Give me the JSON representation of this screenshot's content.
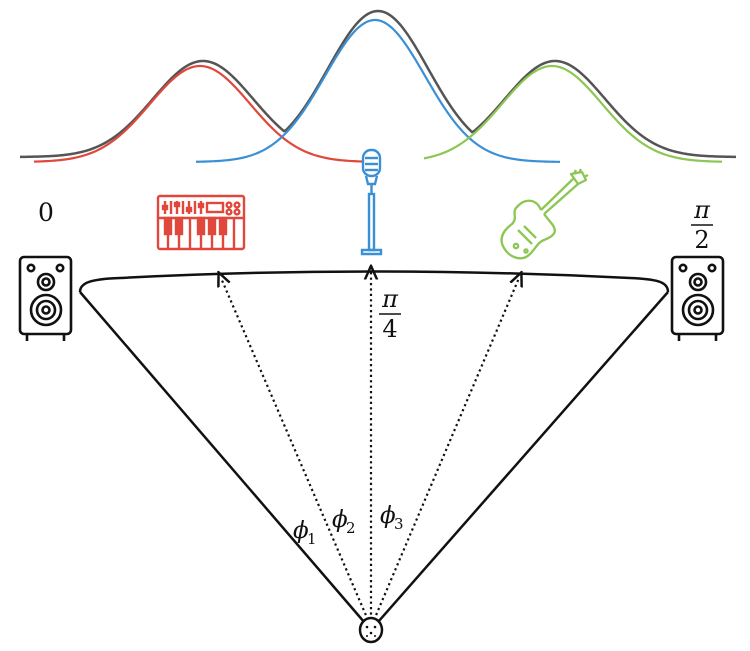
{
  "labels": {
    "left_angle": "0",
    "center_num": "π",
    "center_den": "4",
    "right_num": "π",
    "right_den": "2",
    "phi_symbol": "ϕ",
    "phi1_sub": "1",
    "phi2_sub": "2",
    "phi3_sub": "3"
  },
  "instruments": [
    {
      "name": "keyboard",
      "color": "#e0483c"
    },
    {
      "name": "microphone",
      "color": "#3b8fd4"
    },
    {
      "name": "guitar",
      "color": "#8cc653"
    }
  ],
  "colors": {
    "mixture": "#555555",
    "lines": "#111111"
  },
  "icons": [
    "left-speaker-icon",
    "right-speaker-icon",
    "keyboard-icon",
    "microphone-icon",
    "guitar-icon",
    "listener-icon"
  ]
}
